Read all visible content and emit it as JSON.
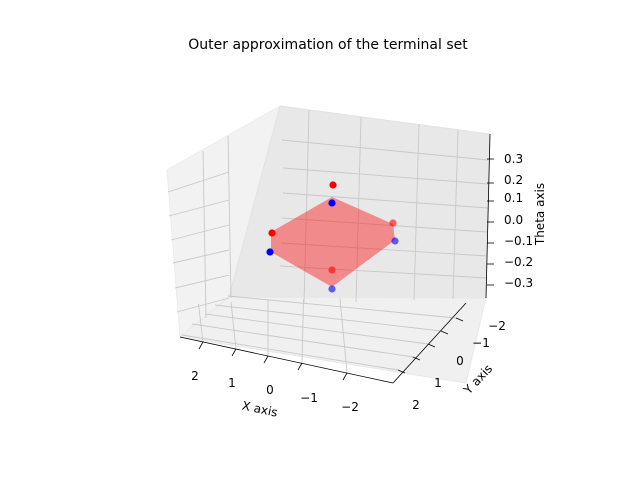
{
  "chart_data": {
    "type": "scatter3d",
    "title": "Outer approximation of the terminal set",
    "xlabel": "X axis",
    "ylabel": "Y axis",
    "zlabel": "Theta axis",
    "xlim": [
      -3,
      3
    ],
    "ylim": [
      -2.2,
      2.2
    ],
    "zlim": [
      -0.38,
      0.38
    ],
    "x_ticks": [
      "2",
      "1",
      "0",
      "−1",
      "−2"
    ],
    "y_ticks": [
      "−2",
      "−1",
      "0",
      "1",
      "2"
    ],
    "z_ticks": [
      "0.3",
      "0.2",
      "0.1",
      "0.0",
      "−0.1",
      "−0.2",
      "−0.3"
    ],
    "grid": true,
    "series": [
      {
        "color": "#ff0000",
        "points": [
          {
            "x": 0.0,
            "y": -2.0,
            "z": 0.0
          },
          {
            "x": 2.0,
            "y": 0.0,
            "z": 0.0
          },
          {
            "x": -2.0,
            "y": 0.0,
            "z": 0.0
          },
          {
            "x": 0.0,
            "y": 2.0,
            "z": 0.0
          }
        ]
      },
      {
        "color": "#0000ff",
        "points": [
          {
            "x": 0.0,
            "y": -2.0,
            "z": -0.1
          },
          {
            "x": 2.0,
            "y": 0.0,
            "z": -0.1
          },
          {
            "x": -2.0,
            "y": 0.0,
            "z": -0.1
          },
          {
            "x": 0.0,
            "y": 2.0,
            "z": -0.1
          }
        ]
      }
    ],
    "region": {
      "color": "#ff0000",
      "opacity": 0.4,
      "vertices": [
        [
          0.0,
          -2.0
        ],
        [
          2.0,
          0.0
        ],
        [
          0.0,
          2.0
        ],
        [
          -2.0,
          0.0
        ]
      ]
    }
  }
}
